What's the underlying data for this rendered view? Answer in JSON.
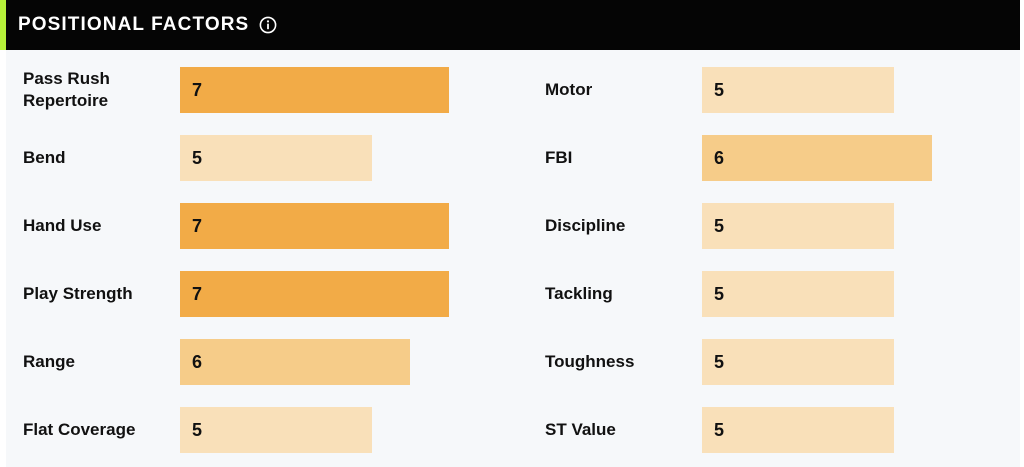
{
  "header": {
    "title": "POSITIONAL FACTORS",
    "info_icon": "info-icon"
  },
  "colors": {
    "header_bg": "#050505",
    "accent": "#b6f23a",
    "body_bg": "#f6f8fa",
    "rating_7": "#f2ab47",
    "rating_6": "#f6cc89",
    "rating_5": "#f9e0b9"
  },
  "factors_left": [
    {
      "label": "Pass Rush Repertoire",
      "value": 7
    },
    {
      "label": "Bend",
      "value": 5
    },
    {
      "label": "Hand Use",
      "value": 7
    },
    {
      "label": "Play Strength",
      "value": 7
    },
    {
      "label": "Range",
      "value": 6
    },
    {
      "label": "Flat Coverage",
      "value": 5
    }
  ],
  "factors_right": [
    {
      "label": "Motor",
      "value": 5
    },
    {
      "label": "FBI",
      "value": 6
    },
    {
      "label": "Discipline",
      "value": 5
    },
    {
      "label": "Tackling",
      "value": 5
    },
    {
      "label": "Toughness",
      "value": 5
    },
    {
      "label": "ST Value",
      "value": 5
    }
  ]
}
